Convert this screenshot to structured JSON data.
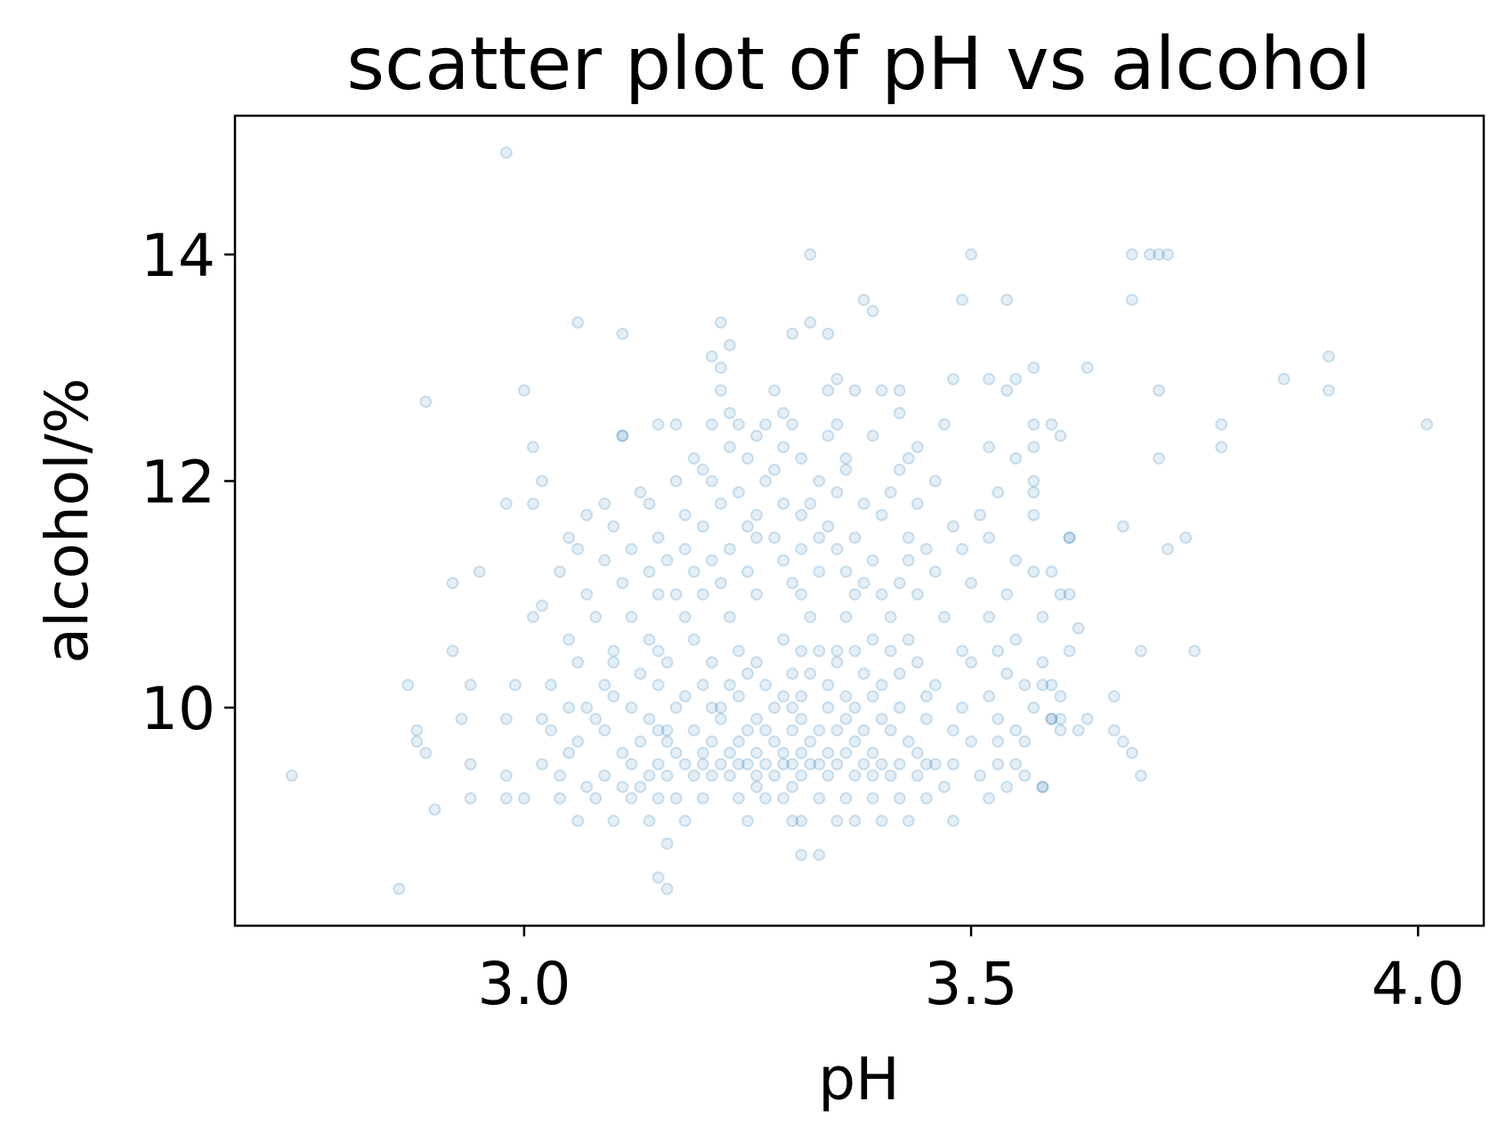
{
  "chart_data": {
    "type": "scatter",
    "title": "scatter plot of pH vs alcohol",
    "xlabel": "pH",
    "ylabel": "alcohol/%",
    "color": "#1f77b4",
    "xlim": [
      2.6765,
      4.0735
    ],
    "ylim": [
      8.075,
      15.225
    ],
    "xticks": [
      {
        "value": 3,
        "label": "3.0"
      },
      3.5,
      {
        "value": 4,
        "label": "4.0"
      }
    ],
    "yticks": [
      10,
      12,
      14
    ],
    "x": [
      2.74,
      2.86,
      2.87,
      2.88,
      2.88,
      2.89,
      2.89,
      2.9,
      2.92,
      2.92,
      2.93,
      2.94,
      2.94,
      2.94,
      2.95,
      2.98,
      2.98,
      2.98,
      2.98,
      2.98,
      2.99,
      3.0,
      3.01,
      3.01,
      3.01,
      3.02,
      3.02,
      3.02,
      3.06,
      3.11,
      3.11,
      3.21,
      3.22,
      3.22,
      3.23,
      3.32,
      3.32,
      3.3,
      3.34,
      3.38,
      3.39,
      3.49,
      3.5,
      3.54,
      3.57,
      3.63,
      3.68,
      3.7,
      3.71,
      3.72,
      3.68,
      3.71,
      3.71,
      3.72,
      3.74,
      3.75,
      3.69,
      3.69,
      3.78,
      3.78,
      3.85,
      3.9,
      3.9,
      4.01,
      3.67,
      3.66,
      3.66,
      3.68,
      3.67,
      3.58,
      3.59,
      3.61,
      3.62,
      3.58,
      3.6,
      3.61,
      3.6,
      3.57,
      3.57,
      3.55,
      3.54,
      3.52,
      3.16,
      3.31,
      3.33,
      3.15,
      3.16,
      3.06,
      3.1,
      3.14,
      3.18,
      3.25,
      3.3,
      3.31,
      3.35,
      3.37,
      3.4,
      3.43,
      3.48,
      3.0,
      3.04,
      3.08,
      3.12,
      3.15,
      3.17,
      3.2,
      3.24,
      3.27,
      3.29,
      3.33,
      3.36,
      3.39,
      3.42,
      3.45,
      3.52,
      3.07,
      3.11,
      3.13,
      3.26,
      3.3,
      3.47,
      3.54,
      3.58,
      3.04,
      3.09,
      3.14,
      3.16,
      3.19,
      3.21,
      3.23,
      3.26,
      3.28,
      3.31,
      3.34,
      3.37,
      3.39,
      3.41,
      3.44,
      3.51,
      3.56,
      3.02,
      3.12,
      3.15,
      3.18,
      3.2,
      3.22,
      3.24,
      3.25,
      3.27,
      3.29,
      3.3,
      3.32,
      3.33,
      3.35,
      3.38,
      3.4,
      3.42,
      3.45,
      3.46,
      3.48,
      3.53,
      3.55,
      3.05,
      3.11,
      3.17,
      3.2,
      3.23,
      3.26,
      3.29,
      3.31,
      3.34,
      3.36,
      3.39,
      3.44,
      3.06,
      3.13,
      3.16,
      3.21,
      3.24,
      3.28,
      3.32,
      3.37,
      3.43,
      3.5,
      3.53,
      3.56,
      3.03,
      3.09,
      3.15,
      3.16,
      3.19,
      3.25,
      3.27,
      3.3,
      3.33,
      3.35,
      3.38,
      3.41,
      3.48,
      3.55,
      3.6,
      3.62,
      3.08,
      3.14,
      3.22,
      3.26,
      3.31,
      3.36,
      3.4,
      3.45,
      3.53,
      3.59,
      3.63,
      3.05,
      3.07,
      3.12,
      3.17,
      3.21,
      3.22,
      3.28,
      3.3,
      3.34,
      3.37,
      3.42,
      3.49,
      3.57,
      3.1,
      3.18,
      3.24,
      3.29,
      3.31,
      3.36,
      3.39,
      3.45,
      3.52,
      3.6,
      3.03,
      3.09,
      3.15,
      3.2,
      3.23,
      3.27,
      3.34,
      3.4,
      3.46,
      3.56,
      3.59,
      3.13,
      3.25,
      3.3,
      3.32,
      3.38,
      3.42,
      3.54,
      3.06,
      3.1,
      3.16,
      3.21,
      3.26,
      3.35,
      3.44,
      3.5,
      3.58,
      3.1,
      3.15,
      3.24,
      3.31,
      3.33,
      3.35,
      3.37,
      3.41,
      3.49,
      3.53,
      3.61,
      3.05,
      3.14,
      3.19,
      3.29,
      3.39,
      3.43,
      3.55,
      3.08,
      3.12,
      3.18,
      3.23,
      3.32,
      3.36,
      3.41,
      3.47,
      3.52,
      3.58,
      3.07,
      3.15,
      3.17,
      3.2,
      3.26,
      3.31,
      3.37,
      3.4,
      3.44,
      3.54,
      3.6,
      3.11,
      3.22,
      3.3,
      3.38,
      3.42,
      3.5,
      3.04,
      3.14,
      3.19,
      3.25,
      3.33,
      3.36,
      3.46,
      3.57,
      3.59,
      3.09,
      3.16,
      3.21,
      3.29,
      3.39,
      3.43,
      3.55,
      3.06,
      3.12,
      3.18,
      3.23,
      3.31,
      3.35,
      3.45,
      3.49,
      3.05,
      3.15,
      3.26,
      3.28,
      3.33,
      3.37,
      3.43,
      3.52,
      3.61,
      3.1,
      3.2,
      3.25,
      3.34,
      3.48,
      3.07,
      3.18,
      3.26,
      3.31,
      3.4,
      3.51,
      3.57,
      3.09,
      3.14,
      3.22,
      3.29,
      3.32,
      3.38,
      3.44,
      3.13,
      3.24,
      3.35,
      3.41,
      3.53,
      3.57,
      3.17,
      3.21,
      3.27,
      3.33,
      3.46,
      3.57,
      3.2,
      3.28,
      3.36,
      3.42,
      3.19,
      3.25,
      3.31,
      3.36,
      3.43,
      3.55,
      3.23,
      3.29,
      3.44,
      3.52,
      3.11,
      3.26,
      3.34,
      3.39,
      3.15,
      3.17,
      3.21,
      3.24,
      3.27,
      3.3,
      3.35,
      3.47,
      3.59,
      3.23,
      3.29,
      3.42,
      3.22,
      3.28,
      3.34,
      3.37,
      3.4,
      3.42,
      3.35,
      3.48
    ],
    "values": [
      9.4,
      8.4,
      10.2,
      9.8,
      9.7,
      12.7,
      9.6,
      9.1,
      11.1,
      10.5,
      9.9,
      10.2,
      9.5,
      9.2,
      11.2,
      14.9,
      11.8,
      9.9,
      9.4,
      9.2,
      10.2,
      12.8,
      12.3,
      11.8,
      10.8,
      12.0,
      10.9,
      9.9,
      13.4,
      13.3,
      12.4,
      13.1,
      13.4,
      13.0,
      13.2,
      14.0,
      13.4,
      13.3,
      13.3,
      13.6,
      13.5,
      13.6,
      14.0,
      13.6,
      13.0,
      13.0,
      14.0,
      14.0,
      14.0,
      14.0,
      13.6,
      12.8,
      12.2,
      11.4,
      11.5,
      10.5,
      10.5,
      9.4,
      12.5,
      12.3,
      12.9,
      13.1,
      12.8,
      12.5,
      11.6,
      10.1,
      9.8,
      9.6,
      9.7,
      10.2,
      9.9,
      11.0,
      10.7,
      9.3,
      9.9,
      11.5,
      12.4,
      12.3,
      12.5,
      12.9,
      12.8,
      12.9,
      8.8,
      8.7,
      8.7,
      8.5,
      8.4,
      9.0,
      9.0,
      9.0,
      9.0,
      9.0,
      9.0,
      9.0,
      9.0,
      9.0,
      9.0,
      9.0,
      9.0,
      9.2,
      9.2,
      9.2,
      9.2,
      9.2,
      9.2,
      9.2,
      9.2,
      9.2,
      9.2,
      9.2,
      9.2,
      9.2,
      9.2,
      9.2,
      9.2,
      9.3,
      9.3,
      9.3,
      9.3,
      9.3,
      9.3,
      9.3,
      9.3,
      9.4,
      9.4,
      9.4,
      9.4,
      9.4,
      9.4,
      9.4,
      9.4,
      9.4,
      9.4,
      9.4,
      9.4,
      9.4,
      9.4,
      9.4,
      9.4,
      9.4,
      9.5,
      9.5,
      9.5,
      9.5,
      9.5,
      9.5,
      9.5,
      9.5,
      9.5,
      9.5,
      9.5,
      9.5,
      9.5,
      9.5,
      9.5,
      9.5,
      9.5,
      9.5,
      9.5,
      9.5,
      9.5,
      9.5,
      9.6,
      9.6,
      9.6,
      9.6,
      9.6,
      9.6,
      9.6,
      9.6,
      9.6,
      9.6,
      9.6,
      9.6,
      9.7,
      9.7,
      9.7,
      9.7,
      9.7,
      9.7,
      9.7,
      9.7,
      9.7,
      9.7,
      9.7,
      9.7,
      9.8,
      9.8,
      9.8,
      9.8,
      9.8,
      9.8,
      9.8,
      9.8,
      9.8,
      9.8,
      9.8,
      9.8,
      9.8,
      9.8,
      9.8,
      9.8,
      9.9,
      9.9,
      9.9,
      9.9,
      9.9,
      9.9,
      9.9,
      9.9,
      9.9,
      9.9,
      9.9,
      10.0,
      10.0,
      10.0,
      10.0,
      10.0,
      10.0,
      10.0,
      10.0,
      10.0,
      10.0,
      10.0,
      10.0,
      10.0,
      10.1,
      10.1,
      10.1,
      10.1,
      10.1,
      10.1,
      10.1,
      10.1,
      10.1,
      10.1,
      10.2,
      10.2,
      10.2,
      10.2,
      10.2,
      10.2,
      10.2,
      10.2,
      10.2,
      10.2,
      10.2,
      10.3,
      10.3,
      10.3,
      10.3,
      10.3,
      10.3,
      10.3,
      10.4,
      10.4,
      10.4,
      10.4,
      10.4,
      10.4,
      10.4,
      10.4,
      10.4,
      10.5,
      10.5,
      10.5,
      10.5,
      10.5,
      10.5,
      10.5,
      10.5,
      10.5,
      10.5,
      10.5,
      10.6,
      10.6,
      10.6,
      10.6,
      10.6,
      10.6,
      10.6,
      10.8,
      10.8,
      10.8,
      10.8,
      10.8,
      10.8,
      10.8,
      10.8,
      10.8,
      10.8,
      11.0,
      11.0,
      11.0,
      11.0,
      11.0,
      11.0,
      11.0,
      11.0,
      11.0,
      11.0,
      11.0,
      11.1,
      11.1,
      11.1,
      11.1,
      11.1,
      11.1,
      11.2,
      11.2,
      11.2,
      11.2,
      11.2,
      11.2,
      11.2,
      11.2,
      11.2,
      11.3,
      11.3,
      11.3,
      11.3,
      11.3,
      11.3,
      11.3,
      11.4,
      11.4,
      11.4,
      11.4,
      11.4,
      11.4,
      11.4,
      11.4,
      11.5,
      11.5,
      11.5,
      11.5,
      11.5,
      11.5,
      11.5,
      11.5,
      11.5,
      11.6,
      11.6,
      11.6,
      11.6,
      11.6,
      11.7,
      11.7,
      11.7,
      11.7,
      11.7,
      11.7,
      11.7,
      11.8,
      11.8,
      11.8,
      11.8,
      11.8,
      11.8,
      11.8,
      11.9,
      11.9,
      11.9,
      11.9,
      11.9,
      11.9,
      12.0,
      12.0,
      12.0,
      12.0,
      12.0,
      12.0,
      12.1,
      12.1,
      12.1,
      12.1,
      12.2,
      12.2,
      12.2,
      12.2,
      12.2,
      12.2,
      12.3,
      12.3,
      12.3,
      12.3,
      12.4,
      12.4,
      12.4,
      12.4,
      12.5,
      12.5,
      12.5,
      12.5,
      12.5,
      12.5,
      12.5,
      12.5,
      12.5,
      12.6,
      12.6,
      12.6,
      12.8,
      12.8,
      12.8,
      12.8,
      12.8,
      12.8,
      12.9,
      12.9
    ]
  }
}
